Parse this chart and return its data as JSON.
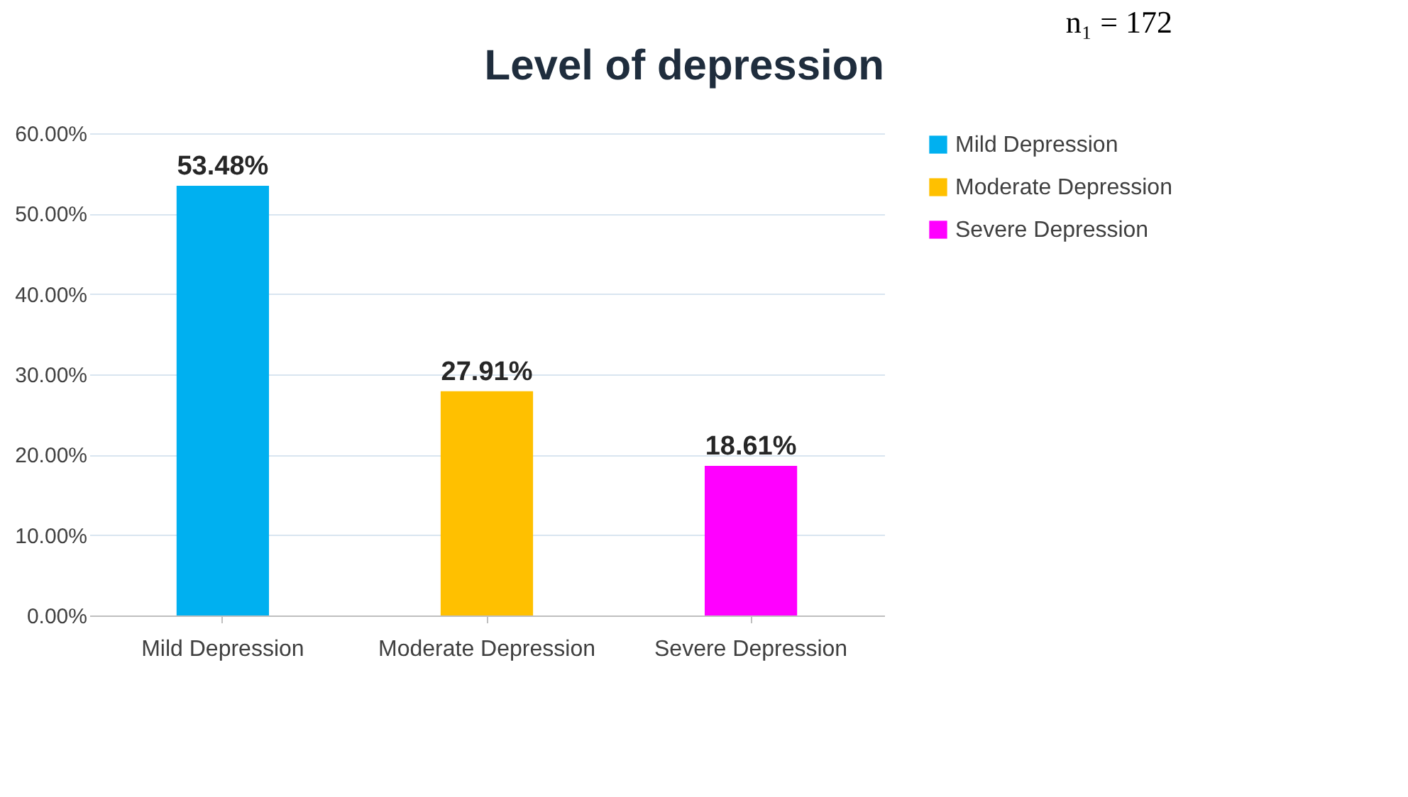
{
  "chart_data": {
    "type": "bar",
    "title": "Level of depression",
    "categories": [
      "Mild Depression",
      "Moderate Depression",
      "Severe Depression"
    ],
    "stacked": true,
    "series": [
      {
        "name": "Mild Depression",
        "color": "#00b0f0",
        "values": [
          53.48,
          null,
          null
        ],
        "value_labels": [
          "53.48%",
          null,
          null
        ]
      },
      {
        "name": "Moderate Depression",
        "color": "#ffc000",
        "values": [
          null,
          27.91,
          null
        ],
        "value_labels": [
          null,
          "27.91%",
          null
        ]
      },
      {
        "name": "Severe Depression",
        "color": "#ff00ff",
        "values": [
          null,
          null,
          18.61
        ],
        "value_labels": [
          null,
          null,
          "18.61%"
        ]
      }
    ],
    "ylim": [
      0,
      60
    ],
    "yticks": [
      {
        "value": 0,
        "label": "0.00%"
      },
      {
        "value": 10,
        "label": "10.00%"
      },
      {
        "value": 20,
        "label": "20.00%"
      },
      {
        "value": 30,
        "label": "30.00%"
      },
      {
        "value": 40,
        "label": "40.00%"
      },
      {
        "value": 50,
        "label": "50.00%"
      },
      {
        "value": 60,
        "label": "60.00%"
      }
    ],
    "grid": "y",
    "legend": "right",
    "annotations": [
      "n₁ = 172"
    ]
  }
}
